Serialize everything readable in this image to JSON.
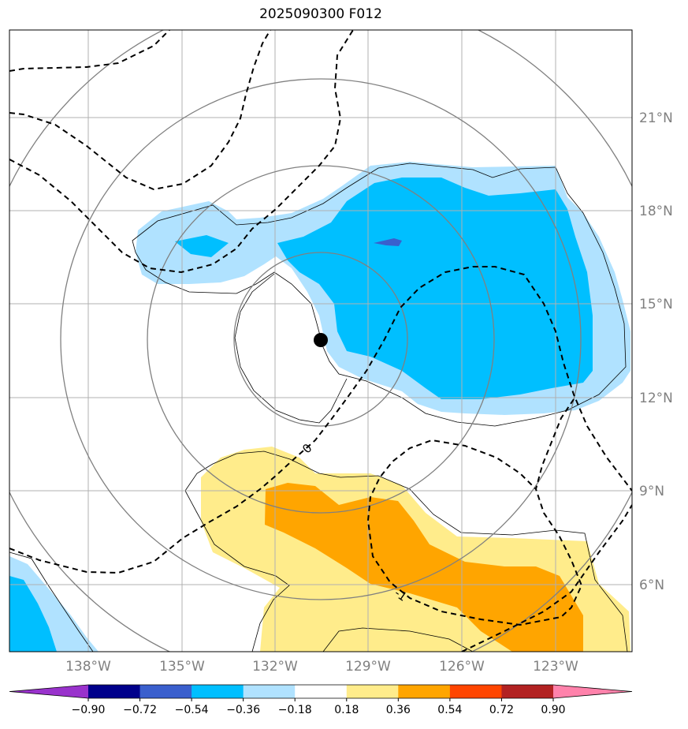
{
  "title": "2025090300 F012",
  "lon_labels": [
    "138°W",
    "135°W",
    "132°W",
    "129°W",
    "126°W",
    "123°W"
  ],
  "lat_labels": [
    "21°N",
    "18°N",
    "15°N",
    "12°N",
    "9°N",
    "6°N"
  ],
  "contour_labels": [
    "0",
    "-1"
  ],
  "colorbar": {
    "ticks": [
      "−0.90",
      "−0.72",
      "−0.54",
      "−0.36",
      "−0.18",
      "0.18",
      "0.36",
      "0.54",
      "0.72",
      "0.90"
    ],
    "colors": [
      "#9932CC",
      "#00008B",
      "#3A5FCD",
      "#00BFFF",
      "#B0E2FF",
      "#FFFFFF",
      "#FFEC8B",
      "#FFA500",
      "#FF4500",
      "#B22222",
      "#FF82AB"
    ]
  },
  "fill_colors": {
    "light_blue": "#B0E2FF",
    "deep_sky_blue": "#00BFFF",
    "royal_blue": "#3A5FCD",
    "light_yellow": "#FFEC8B",
    "orange": "#FFA500"
  },
  "storm_marker": "black-dot"
}
